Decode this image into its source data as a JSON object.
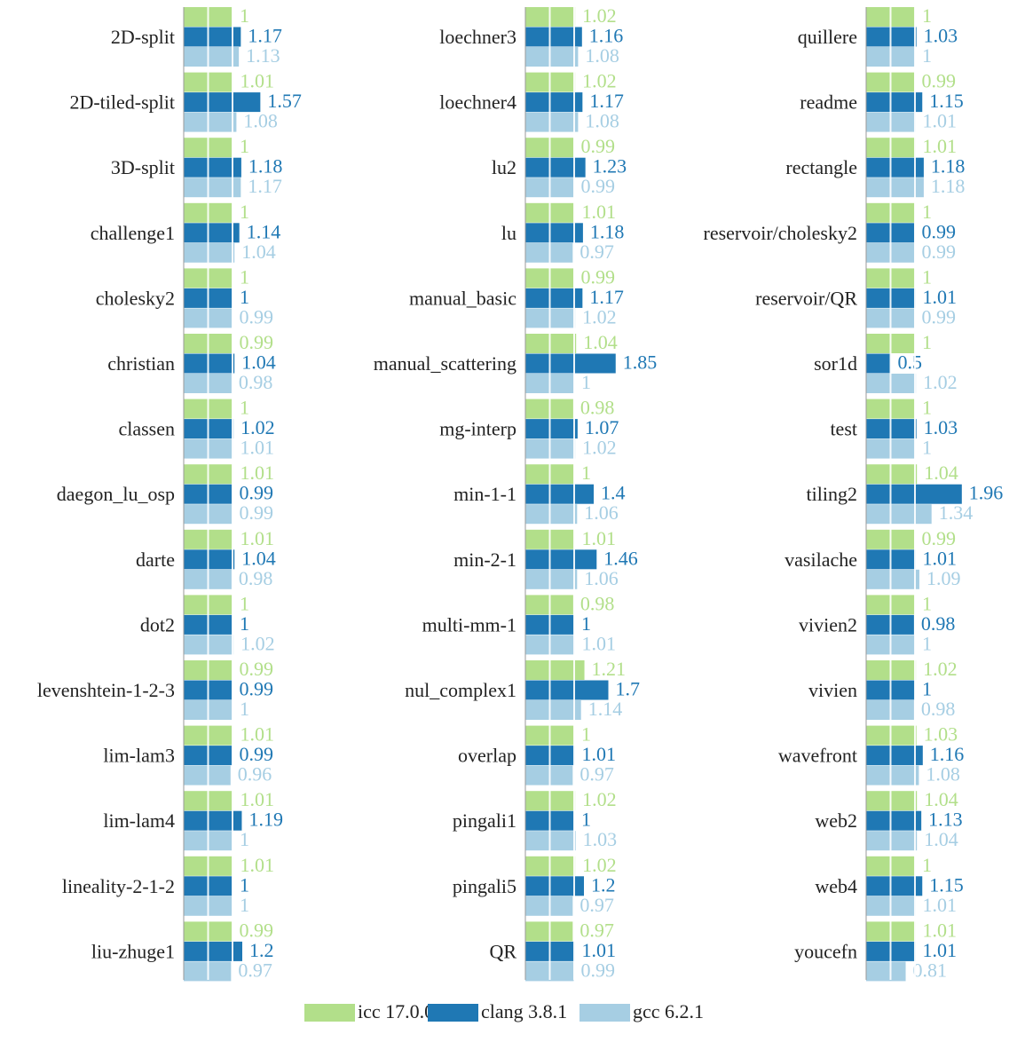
{
  "chart_data": {
    "type": "bar",
    "categories": [
      "2D-split",
      "2D-tiled-split",
      "3D-split",
      "challenge1",
      "cholesky2",
      "christian",
      "classen",
      "daegon_lu_osp",
      "darte",
      "dot2",
      "levenshtein-1-2-3",
      "lim-lam3",
      "lim-lam4",
      "lineality-2-1-2",
      "liu-zhuge1",
      "loechner3",
      "loechner4",
      "lu2",
      "lu",
      "manual_basic",
      "manual_scattering",
      "mg-interp",
      "min-1-1",
      "min-2-1",
      "multi-mm-1",
      "nul_complex1",
      "overlap",
      "pingali1",
      "pingali5",
      "QR",
      "quillere",
      "readme",
      "rectangle",
      "reservoir/cholesky2",
      "reservoir/QR",
      "sor1d",
      "test",
      "tiling2",
      "vasilache",
      "vivien2",
      "vivien",
      "wavefront",
      "web2",
      "web4",
      "youcefn"
    ],
    "series": [
      {
        "name": "icc 17.0.0",
        "color": "#b2df8a",
        "values": [
          1,
          1.01,
          1,
          1,
          1,
          0.99,
          1,
          1.01,
          1.01,
          1,
          0.99,
          1.01,
          1.01,
          1.01,
          0.99,
          1.02,
          1.02,
          0.99,
          1.01,
          0.99,
          1.04,
          0.98,
          1,
          1.01,
          0.98,
          1.21,
          1,
          1.02,
          1.02,
          0.97,
          1,
          0.99,
          1.01,
          1,
          1,
          1,
          1,
          1.04,
          0.99,
          1,
          1.02,
          1.03,
          1.04,
          1,
          1.01
        ]
      },
      {
        "name": "clang 3.8.1",
        "color": "#1f78b4",
        "values": [
          1.17,
          1.57,
          1.18,
          1.14,
          1,
          1.04,
          1.02,
          0.99,
          1.04,
          1,
          0.99,
          0.99,
          1.19,
          1,
          1.2,
          1.16,
          1.17,
          1.23,
          1.18,
          1.17,
          1.85,
          1.07,
          1.4,
          1.46,
          1,
          1.7,
          1.01,
          1,
          1.2,
          1.01,
          1.03,
          1.15,
          1.18,
          0.99,
          1.01,
          0.5,
          1.03,
          1.96,
          1.01,
          0.98,
          1,
          1.16,
          1.13,
          1.15,
          1.01
        ]
      },
      {
        "name": "gcc 6.2.1",
        "color": "#a6cee3",
        "values": [
          1.13,
          1.08,
          1.17,
          1.04,
          0.99,
          0.98,
          1.01,
          0.99,
          0.98,
          1.02,
          1,
          0.96,
          1,
          1,
          0.97,
          1.08,
          1.08,
          0.99,
          0.97,
          1.02,
          1,
          1.02,
          1.06,
          1.06,
          1.01,
          1.14,
          0.97,
          1.03,
          0.97,
          0.99,
          1,
          1.01,
          1.18,
          0.99,
          0.99,
          1.02,
          1,
          1.34,
          1.09,
          1,
          0.98,
          1.08,
          1.04,
          1.01,
          0.81
        ]
      }
    ],
    "xlim": [
      0,
      2
    ],
    "xticks": [
      0,
      0.5,
      1
    ],
    "grid": true
  }
}
